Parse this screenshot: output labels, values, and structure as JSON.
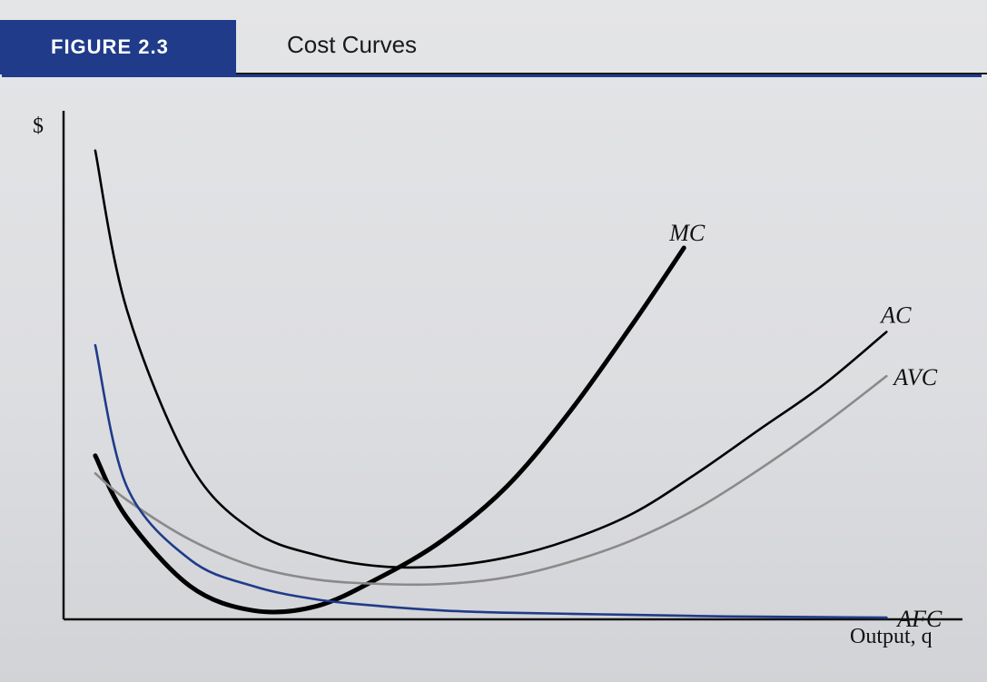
{
  "figure": {
    "tag": "FIGURE 2.3",
    "title": "Cost Curves"
  },
  "chart_data": {
    "type": "line",
    "title": "Cost Curves",
    "xlabel": "Output, q",
    "ylabel": "$",
    "grid": false,
    "legend": "none (series labeled at curve ends)",
    "series": [
      {
        "name": "MC",
        "stroke": "#000000",
        "weight": "heavy",
        "points": [
          [
            0.5,
            7.4
          ],
          [
            1,
            4.6
          ],
          [
            2,
            1.5
          ],
          [
            3,
            0.4
          ],
          [
            4,
            0.6
          ],
          [
            5,
            1.9
          ],
          [
            6,
            3.6
          ],
          [
            7,
            6.0
          ],
          [
            8,
            9.4
          ],
          [
            9,
            13.4
          ],
          [
            9.8,
            16.8
          ]
        ]
      },
      {
        "name": "AC",
        "stroke": "#000000",
        "weight": "normal",
        "points": [
          [
            0.5,
            21.2
          ],
          [
            1,
            14.0
          ],
          [
            2,
            7.0
          ],
          [
            3,
            4.0
          ],
          [
            4,
            2.9
          ],
          [
            5,
            2.4
          ],
          [
            6,
            2.4
          ],
          [
            7,
            2.8
          ],
          [
            8,
            3.6
          ],
          [
            9,
            4.8
          ],
          [
            10,
            6.6
          ],
          [
            11,
            8.6
          ],
          [
            12,
            10.6
          ],
          [
            13,
            13.0
          ]
        ]
      },
      {
        "name": "AVC",
        "stroke": "#8a8a8a",
        "weight": "normal",
        "points": [
          [
            0.5,
            6.6
          ],
          [
            1,
            5.4
          ],
          [
            2,
            3.6
          ],
          [
            3,
            2.4
          ],
          [
            4,
            1.8
          ],
          [
            5,
            1.6
          ],
          [
            6,
            1.6
          ],
          [
            7,
            1.9
          ],
          [
            8,
            2.6
          ],
          [
            9,
            3.6
          ],
          [
            10,
            5.0
          ],
          [
            11,
            6.8
          ],
          [
            12,
            8.8
          ],
          [
            13,
            11.0
          ]
        ]
      },
      {
        "name": "AFC",
        "stroke": "#1f3b8a",
        "weight": "normal",
        "points": [
          [
            0.5,
            12.4
          ],
          [
            1,
            6.0
          ],
          [
            2,
            2.7
          ],
          [
            3,
            1.5
          ],
          [
            4,
            0.9
          ],
          [
            5,
            0.6
          ],
          [
            6,
            0.4
          ],
          [
            7,
            0.3
          ],
          [
            8,
            0.25
          ],
          [
            9,
            0.2
          ],
          [
            10,
            0.15
          ],
          [
            11,
            0.12
          ],
          [
            12,
            0.1
          ],
          [
            13,
            0.08
          ]
        ]
      }
    ],
    "xlim": [
      0,
      14.2
    ],
    "ylim": [
      0,
      23
    ]
  }
}
